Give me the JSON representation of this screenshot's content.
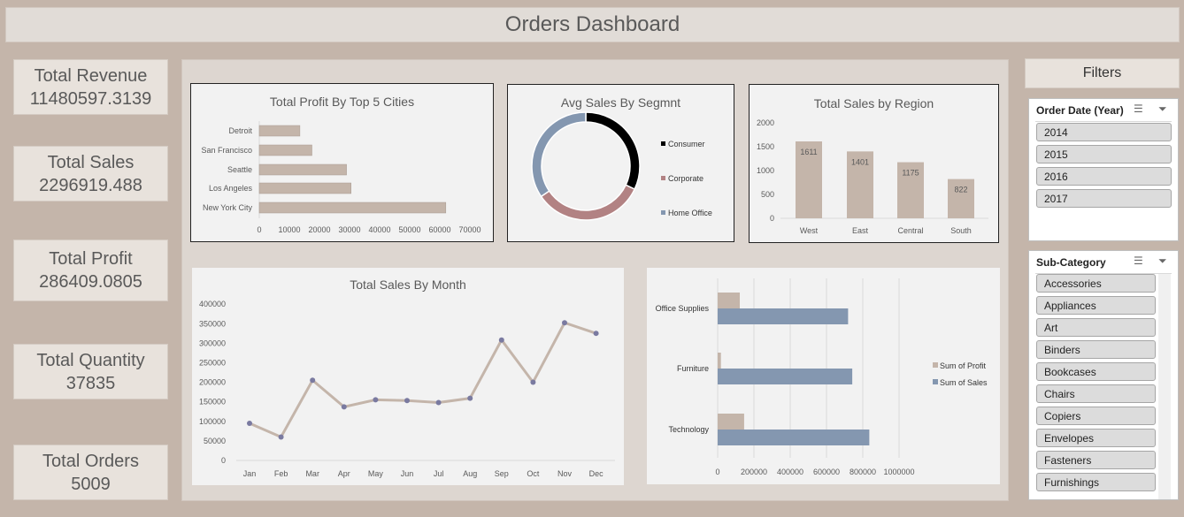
{
  "header": {
    "title": "Orders Dashboard"
  },
  "kpis": [
    {
      "label": "Total Revenue",
      "value": "11480597.3139"
    },
    {
      "label": "Total Sales",
      "value": "2296919.488"
    },
    {
      "label": "Total Profit",
      "value": "286409.0805"
    },
    {
      "label": "Total Quantity",
      "value": "37835"
    },
    {
      "label": "Total Orders",
      "value": "5009"
    }
  ],
  "filters": {
    "title": "Filters",
    "year_slicer": {
      "title": "Order Date (Year)",
      "items": [
        "2014",
        "2015",
        "2016",
        "2017"
      ]
    },
    "subcat_slicer": {
      "title": "Sub-Category",
      "items": [
        "Accessories",
        "Appliances",
        "Art",
        "Binders",
        "Bookcases",
        "Chairs",
        "Copiers",
        "Envelopes",
        "Fasteners",
        "Furnishings"
      ]
    }
  },
  "colors": {
    "tan": "#c4b5aa",
    "blue": "#8497b0",
    "rose": "#b28283",
    "black": "#000000",
    "marker": "#7a7aa0"
  },
  "chart_data": [
    {
      "type": "bar",
      "orientation": "horizontal",
      "title": "Total Profit By Top 5 Cities",
      "categories": [
        "New York City",
        "Los Angeles",
        "Seattle",
        "San Francisco",
        "Detroit"
      ],
      "values": [
        62000,
        30500,
        29000,
        17500,
        13500
      ],
      "xlim": [
        0,
        70000
      ],
      "xticks": [
        "0",
        "10000",
        "20000",
        "30000",
        "40000",
        "50000",
        "60000",
        "70000"
      ]
    },
    {
      "type": "pie",
      "donut": true,
      "title": "Avg Sales By Segmnt",
      "categories": [
        "Consumer",
        "Corporate",
        "Home Office"
      ],
      "values": [
        223.7,
        233.8,
        241.0
      ],
      "colors": [
        "#000000",
        "#b28283",
        "#8497b0"
      ],
      "legend": "right"
    },
    {
      "type": "bar",
      "title": "Total Sales by Region",
      "categories": [
        "West",
        "East",
        "Central",
        "South"
      ],
      "values": [
        1611,
        1401,
        1175,
        822
      ],
      "data_labels": [
        "1611",
        "1401",
        "1175",
        "822"
      ],
      "ylim": [
        0,
        2000
      ],
      "yticks": [
        "0",
        "500",
        "1000",
        "1500",
        "2000"
      ]
    },
    {
      "type": "line",
      "title": "Total Sales By Month",
      "categories": [
        "Jan",
        "Feb",
        "Mar",
        "Apr",
        "May",
        "Jun",
        "Jul",
        "Aug",
        "Sep",
        "Oct",
        "Nov",
        "Dec"
      ],
      "values": [
        95000,
        60000,
        205000,
        137000,
        155000,
        153000,
        148000,
        159000,
        308000,
        200000,
        352000,
        325000
      ],
      "ylim": [
        0,
        400000
      ],
      "yticks": [
        "0",
        "50000",
        "100000",
        "150000",
        "200000",
        "250000",
        "300000",
        "350000",
        "400000"
      ]
    },
    {
      "type": "bar",
      "orientation": "horizontal",
      "categories": [
        "Office Supplies",
        "Furniture",
        "Technology"
      ],
      "series": [
        {
          "name": "Sum of Profit",
          "values": [
            122000,
            18000,
            146000
          ]
        },
        {
          "name": "Sum of Sales",
          "values": [
            719000,
            742000,
            836000
          ]
        }
      ],
      "xlim": [
        0,
        1000000
      ],
      "xticks": [
        "0",
        "200000",
        "400000",
        "600000",
        "800000",
        "1000000"
      ],
      "grid": true,
      "legend": "right"
    }
  ]
}
